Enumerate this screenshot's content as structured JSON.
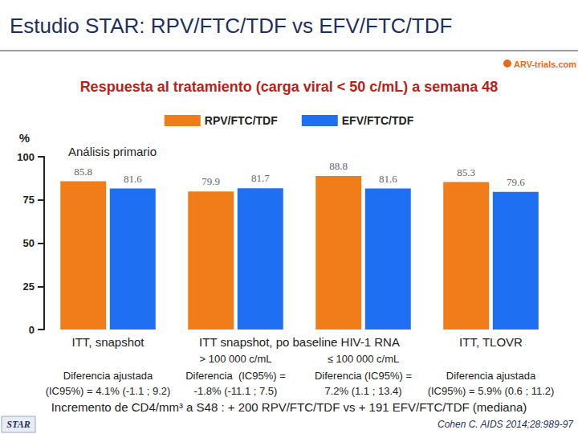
{
  "chart_data": {
    "type": "bar",
    "title": "Estudio STAR: RPV/FTC/TDF vs EFV/FTC/TDF",
    "logo": "ARV-trials.com",
    "subtitle": "Respuesta al tratamiento (carga viral < 50 c/mL) a semana 48",
    "y_label": "%",
    "annotation": "Análisis primario",
    "categories": [
      "ITT, snapshot",
      "> 100 000 c/mL",
      "≤ 100 000 c/mL",
      "ITT, TLOVR"
    ],
    "group_label": "ITT snapshot, po baseline HIV-1 RNA",
    "differences": [
      [
        "Diferencia ajustada",
        "(IC95%) = 4.1% (-1.1 ; 9.2)"
      ],
      [
        "Diferencia  (IC95%) =",
        "-1.8% (-11.1 ; 7.5)"
      ],
      [
        "Diferencia (IC95%) =",
        "7.2% (1.1 ; 13.4)"
      ],
      [
        "Diferencia ajustada",
        "(IC95%) = 5.9% (0.6 ; 11.2)"
      ]
    ],
    "series": [
      {
        "name": "RPV/FTC/TDF",
        "color": "#f07d1a",
        "values": [
          85.8,
          79.9,
          88.8,
          85.3
        ]
      },
      {
        "name": "EFV/FTC/TDF",
        "color": "#1f6ff2",
        "values": [
          81.6,
          81.7,
          81.6,
          79.6
        ]
      }
    ],
    "ylim": [
      0,
      100
    ],
    "yticks": [
      0,
      25,
      50,
      75,
      100
    ],
    "grid": false,
    "legend": "top",
    "data_labels": true,
    "footnote": "Incremento de CD4/mm³ a S48 : + 200 RPV/FTC/TDF vs + 191 EFV/FTC/TDF (mediana)",
    "study_label": "STAR",
    "source": "Cohen C. AIDS 2014;28:989-97"
  }
}
